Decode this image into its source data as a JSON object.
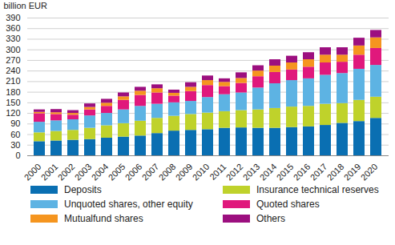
{
  "chart_data": {
    "type": "bar",
    "stacked": true,
    "ylabel": "billion EUR",
    "categories": [
      "2000",
      "2001",
      "2002",
      "2003",
      "2004",
      "2005",
      "2006",
      "2007",
      "2008",
      "2009",
      "2010",
      "2011",
      "2012",
      "2013",
      "2014",
      "2015",
      "2016",
      "2017",
      "2018",
      "2019",
      "2020"
    ],
    "series": [
      {
        "name": "Deposits",
        "color": "#0a6fb2",
        "values": [
          40,
          42,
          44,
          46,
          50,
          53,
          56,
          63,
          70,
          72,
          74,
          78,
          79,
          78,
          78,
          80,
          82,
          86,
          92,
          97,
          106
        ]
      },
      {
        "name": "Insurance technical reserves",
        "color": "#bfd22b",
        "values": [
          25,
          27,
          28,
          32,
          35,
          38,
          42,
          43,
          42,
          45,
          47,
          47,
          49,
          52,
          56,
          58,
          58,
          60,
          56,
          60,
          60
        ]
      },
      {
        "name": "Unquoted shares, other equity",
        "color": "#5db3e3",
        "values": [
          30,
          30,
          30,
          35,
          35,
          39,
          42,
          40,
          38,
          37,
          44,
          48,
          50,
          62,
          70,
          75,
          78,
          82,
          85,
          88,
          90
        ]
      },
      {
        "name": "Quoted shares",
        "color": "#e0187c",
        "values": [
          24,
          18,
          13,
          17,
          20,
          27,
          31,
          32,
          19,
          28,
          34,
          23,
          27,
          32,
          32,
          30,
          33,
          35,
          32,
          40,
          48
        ]
      },
      {
        "name": "Mutualfund shares",
        "color": "#f5951f",
        "values": [
          4,
          5,
          5,
          7,
          9,
          10,
          12,
          12,
          8,
          12,
          14,
          12,
          14,
          16,
          18,
          20,
          21,
          22,
          20,
          26,
          30
        ]
      },
      {
        "name": "Others",
        "color": "#9c0f7f",
        "values": [
          7,
          9,
          8,
          10,
          11,
          11,
          11,
          11,
          9,
          13,
          13,
          10,
          16,
          15,
          18,
          19,
          20,
          21,
          21,
          22,
          21
        ]
      }
    ],
    "ylim": [
      0,
      390
    ],
    "yticks": [
      0,
      30,
      60,
      90,
      120,
      150,
      180,
      210,
      240,
      270,
      300,
      330,
      360,
      390
    ],
    "grid": true,
    "legend": "bottom"
  }
}
